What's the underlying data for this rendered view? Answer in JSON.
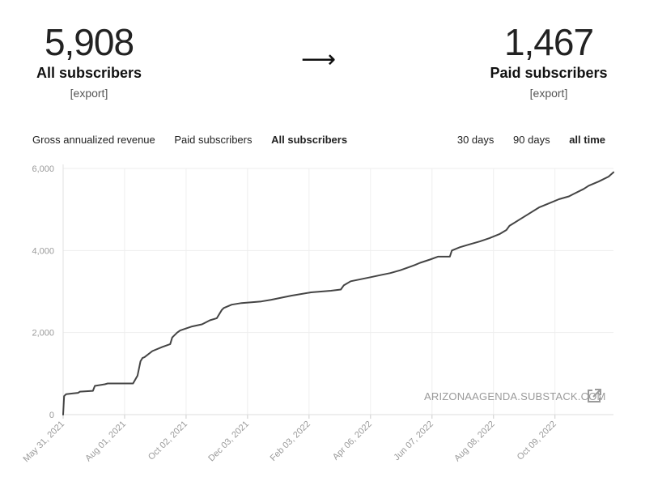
{
  "header": {
    "all": {
      "number": "5,908",
      "label": "All subscribers",
      "export": "[export]"
    },
    "arrow": "⟶",
    "paid": {
      "number": "1,467",
      "label": "Paid subscribers",
      "export": "[export]"
    }
  },
  "tabs": {
    "metrics": [
      "Gross annualized revenue",
      "Paid subscribers",
      "All subscribers"
    ],
    "active_metric": "All subscribers",
    "ranges": [
      "30 days",
      "90 days",
      "all time"
    ],
    "active_range": "all time"
  },
  "watermark": "ARIZONAAGENDA.SUBSTACK.COM",
  "colors": {
    "line": "#444444",
    "grid": "#eeeeee",
    "tick": "#9a9a9a"
  },
  "chart_data": {
    "type": "line",
    "title": "All subscribers",
    "xlabel": "",
    "ylabel": "",
    "ylim": [
      0,
      6000
    ],
    "yticks": [
      0,
      2000,
      4000,
      6000
    ],
    "ytick_labels": [
      "0",
      "2,000",
      "4,000",
      "6,000"
    ],
    "xtick_labels": [
      "May 31, 2021",
      "Aug 01, 2021",
      "Oct 02, 2021",
      "Dec 03, 2021",
      "Feb 03, 2022",
      "Apr 06, 2022",
      "Jun 07, 2022",
      "Aug 08, 2022",
      "Oct 09, 2022"
    ],
    "x_days_total": 555,
    "xtick_days": [
      0,
      62,
      124,
      186,
      248,
      310,
      372,
      434,
      496
    ],
    "series": [
      {
        "name": "All subscribers",
        "x": [
          0,
          1,
          3,
          10,
          15,
          17,
          30,
          32,
          42,
          45,
          55,
          70,
          75,
          70.5,
          78,
          80,
          82,
          90,
          100,
          108,
          110,
          115,
          118,
          124,
          130,
          140,
          148,
          155,
          160,
          162,
          170,
          180,
          190,
          200,
          210,
          220,
          230,
          250,
          260,
          270,
          280,
          283,
          290,
          300,
          310,
          320,
          330,
          340,
          355,
          360,
          370,
          378,
          390,
          392,
          400,
          410,
          420,
          430,
          440,
          447,
          450,
          460,
          470,
          480,
          490,
          500,
          510,
          515,
          525,
          530,
          540,
          550,
          555
        ],
        "y": [
          0,
          450,
          500,
          520,
          530,
          560,
          580,
          700,
          740,
          760,
          760,
          760,
          950,
          760,
          1300,
          1380,
          1400,
          1550,
          1650,
          1720,
          1880,
          2000,
          2050,
          2100,
          2150,
          2200,
          2300,
          2350,
          2550,
          2600,
          2680,
          2720,
          2740,
          2760,
          2800,
          2850,
          2900,
          2980,
          3000,
          3020,
          3050,
          3150,
          3250,
          3300,
          3350,
          3400,
          3450,
          3520,
          3650,
          3700,
          3780,
          3850,
          3850,
          4000,
          4080,
          4150,
          4220,
          4300,
          4400,
          4500,
          4600,
          4750,
          4900,
          5050,
          5150,
          5250,
          5320,
          5380,
          5500,
          5580,
          5680,
          5800,
          5908
        ]
      }
    ]
  }
}
